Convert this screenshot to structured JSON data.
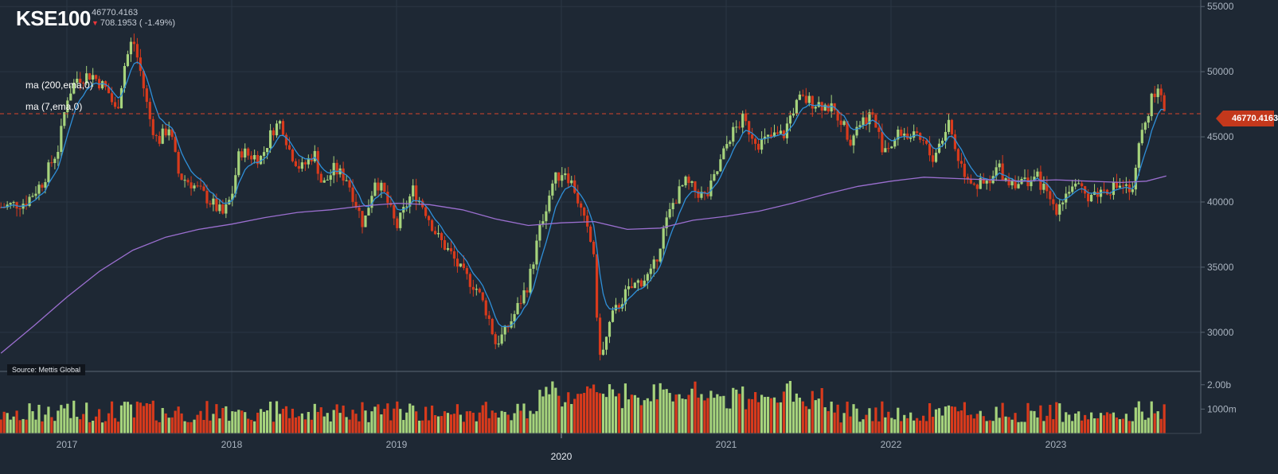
{
  "header": {
    "ticker": "KSE100",
    "last_value": "46770.4163",
    "change_text": "708.1953 ( -1.49%)",
    "change_direction": "down"
  },
  "indicators": [
    {
      "label": "ma (200,ema,0)",
      "color": "#9b6fd0"
    },
    {
      "label": "ma (7,ema,0)",
      "color": "#2f8fd8"
    }
  ],
  "source": "Source: Mettis Global",
  "price_badge": "46770.4163",
  "colors": {
    "background": "#1e2834",
    "up": "#a6d37c",
    "down": "#d83a1c",
    "ema7": "#2f8fd8",
    "ema200": "#9b6fd0",
    "last_line": "#d8452a",
    "grid": "#2b3643",
    "axis_text": "#a9b3bf"
  },
  "chart_data": {
    "type": "candlestick",
    "title": "KSE100",
    "frequency": "weekly",
    "price_axis": {
      "ticks": [
        30000,
        35000,
        40000,
        45000,
        50000,
        55000
      ],
      "ylim": [
        27000,
        55500
      ]
    },
    "volume_axis": {
      "ticks": [
        "1000m",
        "2.00b"
      ],
      "tick_values": [
        1000,
        2000
      ],
      "unit": "millions"
    },
    "x_axis": {
      "ticks": [
        "2017",
        "2018",
        "2019",
        "2020",
        "2021",
        "2022",
        "2023"
      ],
      "highlighted": "2020",
      "start": 2016.6,
      "end": 2023.67
    },
    "last_price": 46770.4163,
    "price_path": [
      [
        2016.6,
        39600
      ],
      [
        2016.75,
        40000
      ],
      [
        2016.85,
        41500
      ],
      [
        2016.95,
        44200
      ],
      [
        2017.0,
        48000
      ],
      [
        2017.06,
        49500
      ],
      [
        2017.15,
        49800
      ],
      [
        2017.25,
        48500
      ],
      [
        2017.3,
        46800
      ],
      [
        2017.35,
        50500
      ],
      [
        2017.4,
        52600
      ],
      [
        2017.45,
        49800
      ],
      [
        2017.5,
        46500
      ],
      [
        2017.55,
        44600
      ],
      [
        2017.62,
        45800
      ],
      [
        2017.68,
        42000
      ],
      [
        2017.75,
        41500
      ],
      [
        2017.85,
        40300
      ],
      [
        2017.95,
        39000
      ],
      [
        2018.0,
        40500
      ],
      [
        2018.05,
        44000
      ],
      [
        2018.1,
        43600
      ],
      [
        2018.18,
        43400
      ],
      [
        2018.25,
        45600
      ],
      [
        2018.3,
        46200
      ],
      [
        2018.35,
        44000
      ],
      [
        2018.42,
        42500
      ],
      [
        2018.5,
        43800
      ],
      [
        2018.55,
        41200
      ],
      [
        2018.62,
        42500
      ],
      [
        2018.7,
        41800
      ],
      [
        2018.75,
        40000
      ],
      [
        2018.8,
        38200
      ],
      [
        2018.87,
        41800
      ],
      [
        2018.93,
        40500
      ],
      [
        2019.0,
        38000
      ],
      [
        2019.05,
        39500
      ],
      [
        2019.1,
        40900
      ],
      [
        2019.17,
        39500
      ],
      [
        2019.25,
        37300
      ],
      [
        2019.33,
        36000
      ],
      [
        2019.4,
        34500
      ],
      [
        2019.48,
        33500
      ],
      [
        2019.55,
        31500
      ],
      [
        2019.6,
        29200
      ],
      [
        2019.65,
        29800
      ],
      [
        2019.72,
        31500
      ],
      [
        2019.8,
        33800
      ],
      [
        2019.88,
        38500
      ],
      [
        2019.95,
        41600
      ],
      [
        2020.02,
        42500
      ],
      [
        2020.08,
        41000
      ],
      [
        2020.15,
        38000
      ],
      [
        2020.2,
        36000
      ],
      [
        2020.22,
        29000
      ],
      [
        2020.25,
        28300
      ],
      [
        2020.3,
        31000
      ],
      [
        2020.38,
        32800
      ],
      [
        2020.46,
        33800
      ],
      [
        2020.55,
        34500
      ],
      [
        2020.62,
        37800
      ],
      [
        2020.68,
        40000
      ],
      [
        2020.75,
        41500
      ],
      [
        2020.82,
        40800
      ],
      [
        2020.88,
        40300
      ],
      [
        2020.95,
        42500
      ],
      [
        2021.02,
        45000
      ],
      [
        2021.1,
        46300
      ],
      [
        2021.15,
        45300
      ],
      [
        2021.2,
        44500
      ],
      [
        2021.28,
        45000
      ],
      [
        2021.35,
        45200
      ],
      [
        2021.4,
        47000
      ],
      [
        2021.45,
        47900
      ],
      [
        2021.55,
        47600
      ],
      [
        2021.62,
        47300
      ],
      [
        2021.7,
        46300
      ],
      [
        2021.75,
        44800
      ],
      [
        2021.8,
        46000
      ],
      [
        2021.88,
        46800
      ],
      [
        2021.95,
        44200
      ],
      [
        2022.0,
        44400
      ],
      [
        2022.06,
        45400
      ],
      [
        2022.12,
        45000
      ],
      [
        2022.2,
        44500
      ],
      [
        2022.25,
        43300
      ],
      [
        2022.32,
        45200
      ],
      [
        2022.35,
        46200
      ],
      [
        2022.4,
        43600
      ],
      [
        2022.45,
        42200
      ],
      [
        2022.52,
        41300
      ],
      [
        2022.6,
        41300
      ],
      [
        2022.65,
        42800
      ],
      [
        2022.7,
        41700
      ],
      [
        2022.8,
        41500
      ],
      [
        2022.88,
        42000
      ],
      [
        2022.95,
        40500
      ],
      [
        2023.0,
        39500
      ],
      [
        2023.05,
        40500
      ],
      [
        2023.1,
        41300
      ],
      [
        2023.18,
        40500
      ],
      [
        2023.25,
        40700
      ],
      [
        2023.3,
        41000
      ],
      [
        2023.35,
        41100
      ],
      [
        2023.4,
        41400
      ],
      [
        2023.47,
        40500
      ],
      [
        2023.5,
        44000
      ],
      [
        2023.55,
        46600
      ],
      [
        2023.6,
        48600
      ],
      [
        2023.64,
        47700
      ],
      [
        2023.67,
        46770
      ]
    ],
    "ema200_path": [
      [
        2016.6,
        28400
      ],
      [
        2016.8,
        30500
      ],
      [
        2017.0,
        32700
      ],
      [
        2017.2,
        34700
      ],
      [
        2017.4,
        36300
      ],
      [
        2017.6,
        37300
      ],
      [
        2017.8,
        37900
      ],
      [
        2018.0,
        38300
      ],
      [
        2018.2,
        38800
      ],
      [
        2018.4,
        39200
      ],
      [
        2018.6,
        39400
      ],
      [
        2018.8,
        39700
      ],
      [
        2019.0,
        39900
      ],
      [
        2019.2,
        39800
      ],
      [
        2019.4,
        39400
      ],
      [
        2019.6,
        38700
      ],
      [
        2019.8,
        38200
      ],
      [
        2020.0,
        38400
      ],
      [
        2020.2,
        38500
      ],
      [
        2020.4,
        37900
      ],
      [
        2020.6,
        38000
      ],
      [
        2020.8,
        38600
      ],
      [
        2021.0,
        38900
      ],
      [
        2021.2,
        39300
      ],
      [
        2021.4,
        39900
      ],
      [
        2021.6,
        40600
      ],
      [
        2021.8,
        41200
      ],
      [
        2022.0,
        41600
      ],
      [
        2022.2,
        41900
      ],
      [
        2022.4,
        41800
      ],
      [
        2022.6,
        41700
      ],
      [
        2022.8,
        41600
      ],
      [
        2023.0,
        41700
      ],
      [
        2023.2,
        41600
      ],
      [
        2023.4,
        41500
      ],
      [
        2023.55,
        41600
      ],
      [
        2023.67,
        42000
      ]
    ]
  }
}
